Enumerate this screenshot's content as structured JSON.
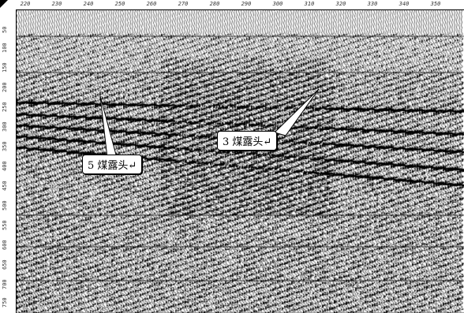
{
  "top_ruler": {
    "ticks": [
      "220",
      "230",
      "240",
      "250",
      "260",
      "270",
      "280",
      "290",
      "300",
      "310",
      "320",
      "330",
      "340",
      "350"
    ]
  },
  "left_ruler": {
    "ticks": [
      "50",
      "100",
      "150",
      "200",
      "250",
      "300",
      "350",
      "400",
      "450",
      "500",
      "550",
      "600",
      "650",
      "700",
      "750"
    ]
  },
  "annotations": {
    "seam5": "5 煤露头↵",
    "seam3": "3 煤露头↵"
  },
  "colors": {
    "ink": "#000000",
    "paper": "#ffffff"
  }
}
